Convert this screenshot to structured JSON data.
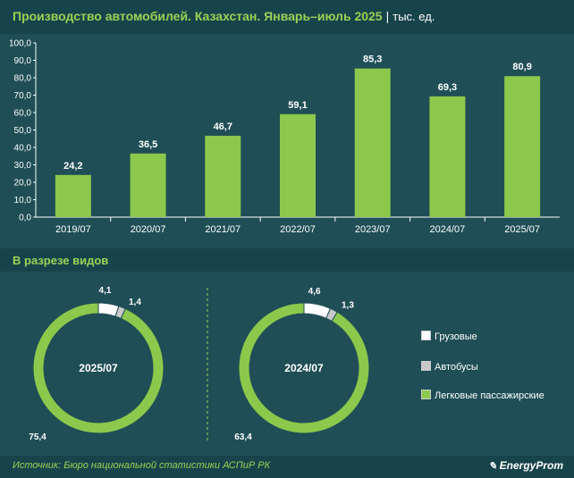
{
  "header": {
    "title": "Производство автомобилей. Казахстан. Январь–июль 2025",
    "separator": "|",
    "unit": "тыс. ед."
  },
  "section": {
    "title": "В разрезе видов"
  },
  "footer": {
    "source": "Источник: Бюро национальной статистики АСПиР РК",
    "logo": "EnergyProm"
  },
  "colors": {
    "bar": "#8cc84b",
    "panel": "#1f4e56",
    "band": "#17444b",
    "accent_text": "#9bd155",
    "trucks": "#ffffff",
    "buses": "#c8c8c8",
    "cars": "#8cc84b"
  },
  "chart_data": [
    {
      "type": "bar",
      "categories": [
        "2019/07",
        "2020/07",
        "2021/07",
        "2022/07",
        "2023/07",
        "2024/07",
        "2025/07"
      ],
      "values": [
        24.2,
        36.5,
        46.7,
        59.1,
        85.3,
        69.3,
        80.9
      ],
      "value_labels": [
        "24,2",
        "36,5",
        "46,7",
        "59,1",
        "85,3",
        "69,3",
        "80,9"
      ],
      "y_ticks": [
        "0,0",
        "10,0",
        "20,0",
        "30,0",
        "40,0",
        "50,0",
        "60,0",
        "70,0",
        "80,0",
        "90,0",
        "100,0"
      ],
      "ylim": [
        0,
        100
      ],
      "grid": false
    },
    {
      "type": "pie",
      "center_label": "2025/07",
      "slices": [
        {
          "name": "Грузовые",
          "value": 4.1,
          "label": "4,1"
        },
        {
          "name": "Автобусы",
          "value": 1.4,
          "label": "1,4"
        },
        {
          "name": "Легковые пассажирские",
          "value": 75.4,
          "label": "75,4"
        }
      ]
    },
    {
      "type": "pie",
      "center_label": "2024/07",
      "slices": [
        {
          "name": "Грузовые",
          "value": 4.6,
          "label": "4,6"
        },
        {
          "name": "Автобусы",
          "value": 1.3,
          "label": "1,3"
        },
        {
          "name": "Легковые пассажирские",
          "value": 63.4,
          "label": "63,4"
        }
      ]
    }
  ],
  "legend": [
    {
      "label": "Грузовые",
      "color": "#ffffff"
    },
    {
      "label": "Автобусы",
      "color": "#c8c8c8"
    },
    {
      "label": "Легковые пассажирские",
      "color": "#8cc84b"
    }
  ]
}
